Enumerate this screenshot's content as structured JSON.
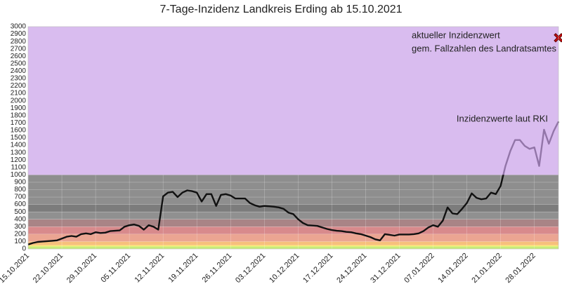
{
  "chart_data": {
    "type": "line",
    "title": "7-Tage-Inzidenz Landkreis Erding ab 15.10.2021",
    "categories": [
      "15.10.2021",
      null,
      null,
      null,
      null,
      null,
      null,
      "22.10.2021",
      null,
      null,
      null,
      null,
      null,
      null,
      "29.10.2021",
      null,
      null,
      null,
      null,
      null,
      null,
      "05.11.2021",
      null,
      null,
      null,
      null,
      null,
      null,
      "12.11.2021",
      null,
      null,
      null,
      null,
      null,
      null,
      "19.11.2021",
      null,
      null,
      null,
      null,
      null,
      null,
      "26.11.2021",
      null,
      null,
      null,
      null,
      null,
      null,
      "03.12.2021",
      null,
      null,
      null,
      null,
      null,
      null,
      "10.12.2021",
      null,
      null,
      null,
      null,
      null,
      null,
      "17.12.2021",
      null,
      null,
      null,
      null,
      null,
      null,
      "24.12.2021",
      null,
      null,
      null,
      null,
      null,
      null,
      "31.12.2021",
      null,
      null,
      null,
      null,
      null,
      null,
      "07.01.2022",
      null,
      null,
      null,
      null,
      null,
      null,
      "14.01.2022",
      null,
      null,
      null,
      null,
      null,
      null,
      "21.01.2022",
      null,
      null,
      null,
      null,
      null,
      null,
      "28.01.2022",
      null,
      null,
      null,
      null,
      null
    ],
    "series": [
      {
        "name": "Inzidenzwerte laut RKI",
        "color": "#111111",
        "values": [
          60,
          80,
          95,
          100,
          105,
          110,
          115,
          140,
          165,
          175,
          165,
          200,
          210,
          200,
          225,
          215,
          220,
          240,
          245,
          250,
          300,
          320,
          330,
          310,
          260,
          320,
          300,
          260,
          710,
          760,
          770,
          700,
          760,
          790,
          780,
          760,
          640,
          740,
          740,
          580,
          730,
          740,
          720,
          680,
          680,
          680,
          620,
          590,
          570,
          580,
          575,
          570,
          560,
          540,
          490,
          470,
          400,
          350,
          320,
          315,
          310,
          290,
          270,
          255,
          245,
          240,
          230,
          225,
          210,
          200,
          180,
          160,
          130,
          115,
          200,
          190,
          180,
          195,
          195,
          195,
          200,
          210,
          240,
          290,
          320,
          300,
          380,
          560,
          480,
          470,
          540,
          620,
          750,
          690,
          670,
          680,
          760,
          740,
          850,
          1120,
          1320,
          1470,
          1470,
          1390,
          1350,
          1370,
          1120,
          1610,
          1420,
          1590,
          1720
        ]
      },
      {
        "name_lines": [
          "aktueller Inzidenzwert",
          "gem. Fallzahlen des Landratsamtes"
        ],
        "color": "#d01010",
        "marker": "x",
        "values": [
          null,
          null,
          null,
          null,
          null,
          null,
          null,
          null,
          null,
          null,
          null,
          null,
          null,
          null,
          null,
          null,
          null,
          null,
          null,
          null,
          null,
          null,
          null,
          null,
          null,
          null,
          null,
          null,
          null,
          null,
          null,
          null,
          null,
          null,
          null,
          null,
          null,
          null,
          null,
          null,
          null,
          null,
          null,
          null,
          null,
          null,
          null,
          null,
          null,
          null,
          null,
          null,
          null,
          null,
          null,
          null,
          null,
          null,
          null,
          null,
          null,
          null,
          null,
          null,
          null,
          null,
          null,
          null,
          null,
          null,
          null,
          null,
          null,
          null,
          null,
          null,
          null,
          null,
          null,
          null,
          null,
          null,
          null,
          null,
          null,
          null,
          null,
          null,
          null,
          null,
          null,
          null,
          null,
          null,
          null,
          null,
          null,
          null,
          null,
          null,
          null,
          null,
          null,
          null,
          null,
          null,
          null,
          null,
          null,
          null,
          2850
        ]
      }
    ],
    "bands": [
      {
        "from": 0,
        "to": 35,
        "color": "#c8eb78"
      },
      {
        "from": 35,
        "to": 50,
        "color": "#fbec72"
      },
      {
        "from": 50,
        "to": 100,
        "color": "#f7c07c"
      },
      {
        "from": 100,
        "to": 200,
        "color": "#eba592"
      },
      {
        "from": 200,
        "to": 300,
        "color": "#d88a8c"
      },
      {
        "from": 300,
        "to": 400,
        "color": "#a98486"
      },
      {
        "from": 400,
        "to": 500,
        "color": "#909090"
      },
      {
        "from": 500,
        "to": 600,
        "color": "#7c7c7c"
      },
      {
        "from": 600,
        "to": 1000,
        "color": "#8e8e8e"
      },
      {
        "from": 1000,
        "to": 3000,
        "color": "#c9a0e8",
        "overlay": true
      }
    ],
    "ylim": [
      0,
      3000
    ],
    "yticks": [
      0,
      100,
      200,
      300,
      400,
      500,
      600,
      700,
      800,
      900,
      1000,
      1100,
      1200,
      1300,
      1400,
      1500,
      1600,
      1700,
      1800,
      1900,
      2000,
      2100,
      2200,
      2300,
      2400,
      2500,
      2600,
      2700,
      2800,
      2900,
      3000
    ],
    "grid": true
  }
}
